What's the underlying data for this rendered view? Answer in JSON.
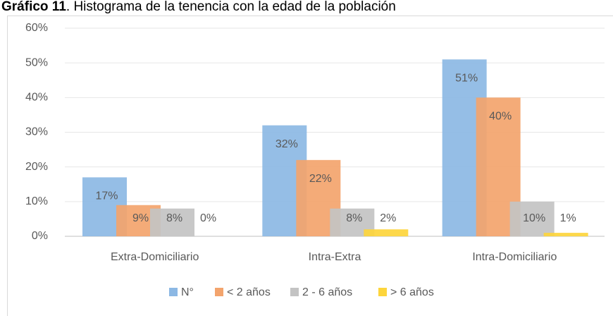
{
  "chart_data": {
    "type": "bar",
    "title": "Gráfico 11",
    "subtitle": ". Histograma de la tenencia con la edad de la población",
    "categories": [
      "Extra-Domiciliario",
      "Intra-Extra",
      "Intra-Domiciliario"
    ],
    "series": [
      {
        "name": "N°",
        "color": "#8cb8e4",
        "values": [
          17,
          32,
          51
        ],
        "value_labels": [
          "17%",
          "32%",
          "51%"
        ]
      },
      {
        "name": "< 2 años",
        "color": "#f3a46d",
        "values": [
          9,
          22,
          40
        ],
        "value_labels": [
          "9%",
          "22%",
          "40%"
        ]
      },
      {
        "name": "2 - 6 años",
        "color": "#c3c3c3",
        "values": [
          8,
          8,
          10
        ],
        "value_labels": [
          "8%",
          "8%",
          "10%"
        ]
      },
      {
        "name": "> 6 años",
        "color": "#fdd53c",
        "values": [
          0,
          2,
          1
        ],
        "value_labels": [
          "0%",
          "2%",
          "1%"
        ]
      }
    ],
    "ylim": [
      0,
      60
    ],
    "yticks": [
      {
        "value": 0,
        "label": "0%"
      },
      {
        "value": 10,
        "label": "10%"
      },
      {
        "value": 20,
        "label": "20%"
      },
      {
        "value": 30,
        "label": "30%"
      },
      {
        "value": 40,
        "label": "40%"
      },
      {
        "value": 50,
        "label": "50%"
      },
      {
        "value": 60,
        "label": "60%"
      }
    ],
    "grid": true,
    "legend": "bottom"
  }
}
